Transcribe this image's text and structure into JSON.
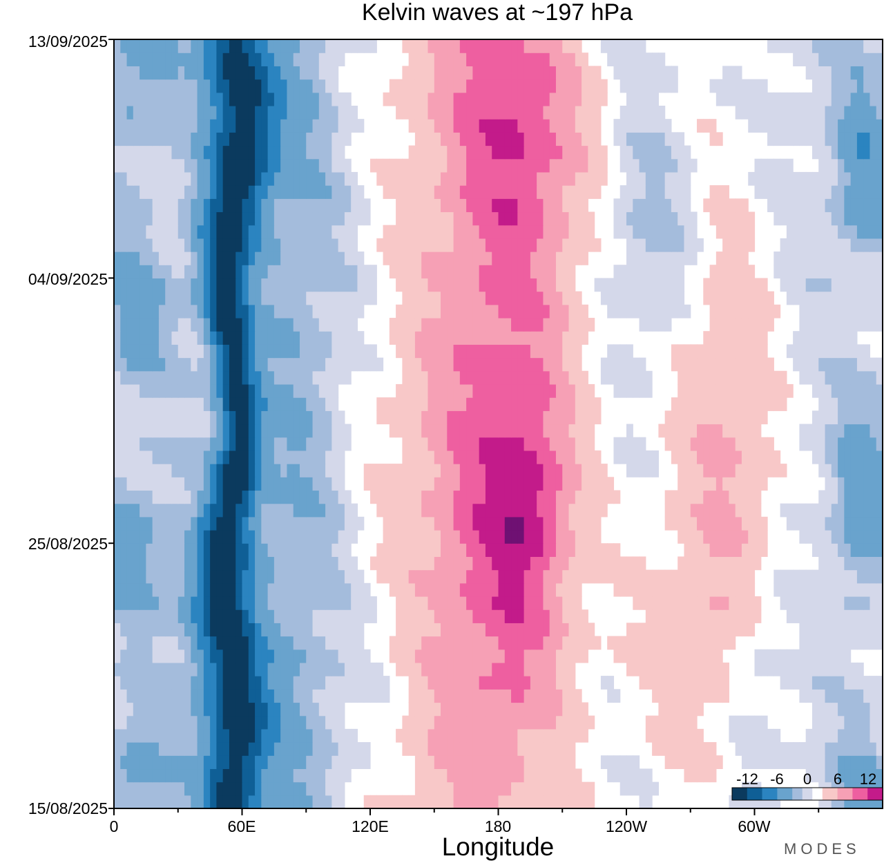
{
  "chart_data": {
    "type": "heatmap",
    "title": "Kelvin waves at ~197 hPa",
    "xlabel": "Longitude",
    "ylabel": "",
    "x_ticks": [
      "0",
      "60E",
      "120E",
      "180",
      "120W",
      "60W"
    ],
    "x_tick_values": [
      0,
      60,
      120,
      180,
      240,
      300
    ],
    "xlim": [
      0,
      360
    ],
    "y_ticks": [
      "13/09/2025",
      "04/09/2025",
      "25/08/2025",
      "15/08/2025"
    ],
    "y_tick_days": [
      29,
      20,
      10,
      0
    ],
    "ylim_days": [
      0,
      29
    ],
    "colorbar": {
      "ticks": [
        "-12",
        "-6",
        "0",
        "6",
        "12"
      ],
      "tick_values": [
        -12,
        -6,
        0,
        6,
        12
      ],
      "range": [
        -15,
        15
      ],
      "levels": [
        -15,
        -12,
        -9,
        -6,
        -3,
        -1,
        1,
        3,
        6,
        9,
        12,
        15
      ],
      "colors": [
        "#0b3a5e",
        "#0f5f96",
        "#2b84c0",
        "#69a3cd",
        "#a4bcdc",
        "#d4d8ea",
        "#ffffff",
        "#f8c8c8",
        "#f6a0b5",
        "#ee5fa0",
        "#c31b8a",
        "#6f1173"
      ]
    },
    "features": [
      {
        "name": "negative band",
        "lon_start": 52,
        "lon_end": 60,
        "day_start": 0,
        "day_end": 29,
        "min_value": -14
      },
      {
        "name": "positive region west",
        "lon_start": 150,
        "lon_end": 178,
        "day_start": 0,
        "day_end": 29,
        "max_value": 9
      },
      {
        "name": "positive core",
        "lon_start": 190,
        "day": 11.5,
        "max_value": 11
      },
      {
        "name": "positive region east",
        "lon_start": 245,
        "lon_end": 285,
        "day_start": 2,
        "day_end": 25,
        "max_value": 7
      }
    ],
    "brand": "MODES"
  }
}
